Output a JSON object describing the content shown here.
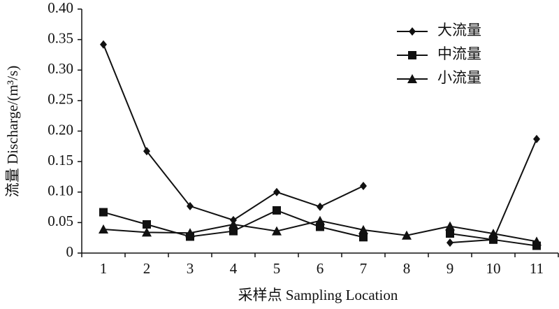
{
  "chart_data": {
    "type": "line",
    "xlabel": "采样点 Sampling Location",
    "ylabel": "流量 Discharge/(m³/s)",
    "categories": [
      "1",
      "2",
      "3",
      "4",
      "5",
      "6",
      "7",
      "8",
      "9",
      "10",
      "11"
    ],
    "series": [
      {
        "name": "大流量",
        "color": "#111111",
        "marker": "diamond",
        "values": [
          0.342,
          0.167,
          0.077,
          0.054,
          0.1,
          0.076,
          0.11,
          null,
          0.017,
          0.022,
          0.187
        ]
      },
      {
        "name": "中流量",
        "color": "#111111",
        "marker": "square",
        "values": [
          0.067,
          0.047,
          0.027,
          0.036,
          0.07,
          0.043,
          0.026,
          null,
          0.032,
          0.022,
          0.012
        ]
      },
      {
        "name": "小流量",
        "color": "#111111",
        "marker": "triangle",
        "values": [
          0.039,
          0.034,
          0.033,
          0.047,
          0.036,
          0.053,
          0.038,
          0.029,
          0.044,
          0.032,
          0.019
        ]
      }
    ],
    "ylim": [
      0,
      0.4
    ],
    "yticks": [
      0,
      0.05,
      {
        "value": 0.1,
        "label": "0.10"
      },
      0.15,
      {
        "value": 0.2,
        "label": "0.20"
      },
      0.25,
      {
        "value": 0.3,
        "label": "0.30"
      },
      0.35,
      {
        "value": 0.4,
        "label": "0.40"
      }
    ],
    "legend": "upper-right"
  }
}
